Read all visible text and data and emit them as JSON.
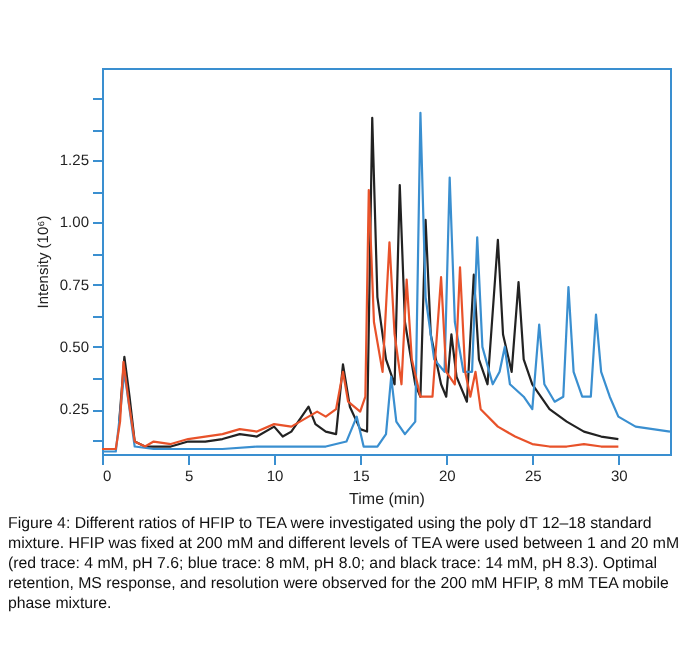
{
  "chart_data": {
    "type": "line",
    "xlabel": "Time (min)",
    "ylabel": "Intensity (10⁶)",
    "xlim": [
      0,
      33
    ],
    "ylim": [
      0.07,
      1.62
    ],
    "xticks": [
      0,
      5,
      10,
      15,
      20,
      25,
      30
    ],
    "yticks": [
      {
        "value": 0.125,
        "label": null
      },
      0.25,
      {
        "value": 0.375,
        "label": null
      },
      {
        "value": 0.5,
        "label": "0.50"
      },
      {
        "value": 0.625,
        "label": null
      },
      0.75,
      {
        "value": 0.875,
        "label": null
      },
      {
        "value": 1,
        "label": "1.00"
      },
      {
        "value": 1.125,
        "label": null
      },
      1.25,
      {
        "value": 1.375,
        "label": null
      },
      {
        "value": 1.5,
        "label": null
      }
    ],
    "grid": false,
    "line_style": "solid",
    "marker": "none",
    "annotations": [
      "Figure 4: Different ratios of HFIP to TEA were investigated using the poly dT 12–18 standard mixture. HFIP was fixed at 200 mM and different levels of TEA were used between 1 and 20 mM (red trace: 4 mM, pH 7.6; blue trace: 8 mM, pH 8.0; and black trace: 14 mM, pH 8.3). Optimal retention, MS response, and resolution were observed for the 200 mM HFIP, 8 mM TEA mobile phase mixture."
    ],
    "series": [
      {
        "color": "#e8522a",
        "x": [
          0,
          0.8,
          1.05,
          1.25,
          1.55,
          1.9,
          2.5,
          3,
          4,
          5,
          6,
          7,
          8,
          9,
          10,
          11,
          12,
          12.5,
          13,
          13.6,
          14,
          14.3,
          15,
          15.3,
          15.5,
          15.8,
          16.3,
          16.7,
          17.0,
          17.4,
          17.7,
          18.0,
          18.5,
          19.2,
          19.7,
          20.0,
          20.5,
          20.8,
          21.1,
          21.4,
          21.7,
          22,
          23,
          24,
          25,
          26,
          27,
          28,
          29,
          30
        ],
        "values": [
          0.09,
          0.09,
          0.2,
          0.44,
          0.28,
          0.12,
          0.1,
          0.12,
          0.11,
          0.13,
          0.14,
          0.15,
          0.17,
          0.16,
          0.19,
          0.18,
          0.22,
          0.24,
          0.22,
          0.25,
          0.4,
          0.28,
          0.24,
          0.3,
          1.13,
          0.6,
          0.4,
          0.92,
          0.55,
          0.35,
          0.77,
          0.45,
          0.3,
          0.3,
          0.78,
          0.4,
          0.35,
          0.82,
          0.4,
          0.3,
          0.4,
          0.25,
          0.18,
          0.14,
          0.11,
          0.1,
          0.1,
          0.11,
          0.1,
          0.1
        ]
      },
      {
        "color": "#3a8fd0",
        "x": [
          0,
          0.8,
          1.0,
          1.3,
          1.6,
          1.9,
          3,
          5,
          7,
          9,
          11,
          13,
          14.2,
          14.8,
          15.2,
          16,
          16.5,
          16.8,
          17.1,
          17.6,
          18.2,
          18.5,
          18.8,
          19.3,
          19.9,
          20.2,
          20.5,
          21.0,
          21.5,
          21.8,
          22.1,
          22.7,
          23.1,
          23.4,
          23.7,
          24.5,
          25.0,
          25.4,
          25.7,
          26.3,
          26.8,
          27.1,
          27.4,
          27.9,
          28.4,
          28.7,
          29.0,
          29.5,
          30,
          31,
          32,
          33
        ],
        "values": [
          0.08,
          0.08,
          0.2,
          0.4,
          0.25,
          0.1,
          0.09,
          0.09,
          0.09,
          0.1,
          0.1,
          0.1,
          0.12,
          0.22,
          0.1,
          0.1,
          0.15,
          0.38,
          0.2,
          0.15,
          0.2,
          1.44,
          0.7,
          0.45,
          0.4,
          1.18,
          0.6,
          0.4,
          0.4,
          0.94,
          0.5,
          0.35,
          0.4,
          0.5,
          0.35,
          0.3,
          0.25,
          0.59,
          0.35,
          0.28,
          0.3,
          0.74,
          0.4,
          0.3,
          0.3,
          0.63,
          0.4,
          0.3,
          0.22,
          0.18,
          0.17,
          0.16
        ]
      },
      {
        "color": "#222222",
        "x": [
          1.0,
          1.3,
          1.6,
          1.9,
          2.5,
          4,
          5,
          6,
          7,
          8,
          9,
          10,
          10.5,
          11,
          12,
          12.4,
          13,
          13.6,
          14,
          14.4,
          15,
          15.4,
          15.7,
          16.0,
          16.5,
          17.0,
          17.3,
          17.6,
          18.2,
          18.5,
          18.8,
          19.1,
          19.7,
          20.0,
          20.3,
          20.6,
          21.2,
          21.6,
          21.9,
          22.4,
          23.0,
          23.3,
          23.8,
          24.2,
          24.5,
          25,
          26,
          27,
          28,
          29,
          30
        ],
        "values": [
          0.2,
          0.46,
          0.3,
          0.12,
          0.1,
          0.1,
          0.12,
          0.12,
          0.13,
          0.15,
          0.14,
          0.18,
          0.14,
          0.16,
          0.26,
          0.19,
          0.16,
          0.15,
          0.43,
          0.26,
          0.17,
          0.16,
          1.42,
          0.7,
          0.45,
          0.35,
          1.15,
          0.6,
          0.35,
          0.3,
          1.01,
          0.55,
          0.35,
          0.3,
          0.55,
          0.38,
          0.28,
          0.79,
          0.45,
          0.35,
          0.93,
          0.55,
          0.4,
          0.76,
          0.45,
          0.35,
          0.25,
          0.2,
          0.16,
          0.14,
          0.13
        ]
      }
    ]
  }
}
